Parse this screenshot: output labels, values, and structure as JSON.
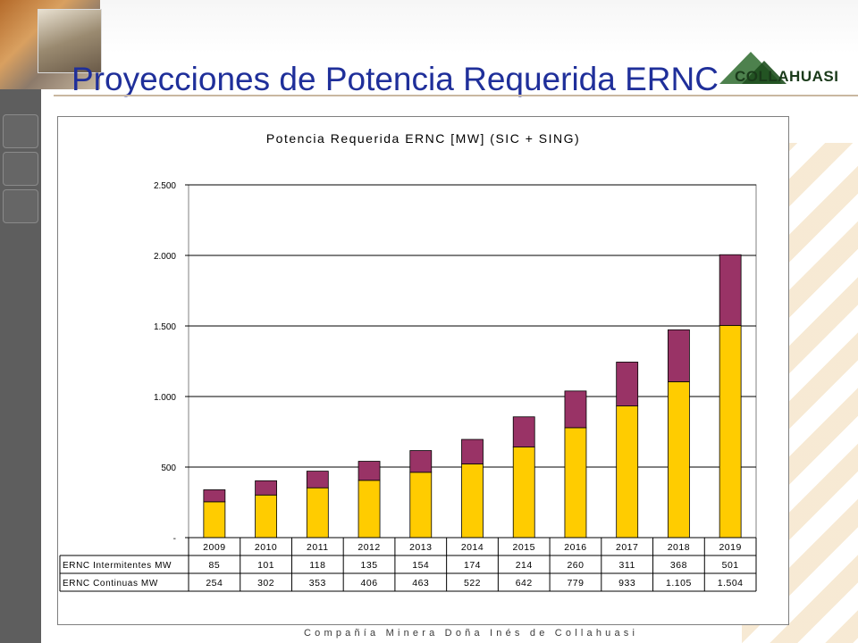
{
  "slide": {
    "title": "Proyecciones de Potencia Requerida ERNC",
    "logo_text": "COLLAHUASI",
    "footer": "Compañía Minera Doña Inés de Collahuasi"
  },
  "chart_data": {
    "type": "bar",
    "stacked": true,
    "title": "Potencia  Requerida ERNC [MW] (SIC + SING)",
    "xlabel": "",
    "ylabel": "",
    "categories": [
      "2009",
      "2010",
      "2011",
      "2012",
      "2013",
      "2014",
      "2015",
      "2016",
      "2017",
      "2018",
      "2019"
    ],
    "ylim": [
      0,
      2500
    ],
    "yticks": [
      0,
      500,
      1000,
      1500,
      2000,
      2500
    ],
    "ytick_labels": [
      "-",
      "500",
      "1.000",
      "1.500",
      "2.000",
      "2.500"
    ],
    "grid": true,
    "series": [
      {
        "name": "ERNC Continuas MW",
        "color": "#ffcc00",
        "values": [
          254,
          302,
          353,
          406,
          463,
          522,
          642,
          779,
          933,
          1105,
          1504
        ],
        "labels": [
          "254",
          "302",
          "353",
          "406",
          "463",
          "522",
          "642",
          "779",
          "933",
          "1.105",
          "1.504"
        ]
      },
      {
        "name": "ERNC Intermitentes MW",
        "color": "#993366",
        "values": [
          85,
          101,
          118,
          135,
          154,
          174,
          214,
          260,
          311,
          368,
          501
        ],
        "labels": [
          "85",
          "101",
          "118",
          "135",
          "154",
          "174",
          "214",
          "260",
          "311",
          "368",
          "501"
        ]
      }
    ],
    "data_table_order": [
      "ERNC Intermitentes MW",
      "ERNC Continuas MW"
    ]
  }
}
